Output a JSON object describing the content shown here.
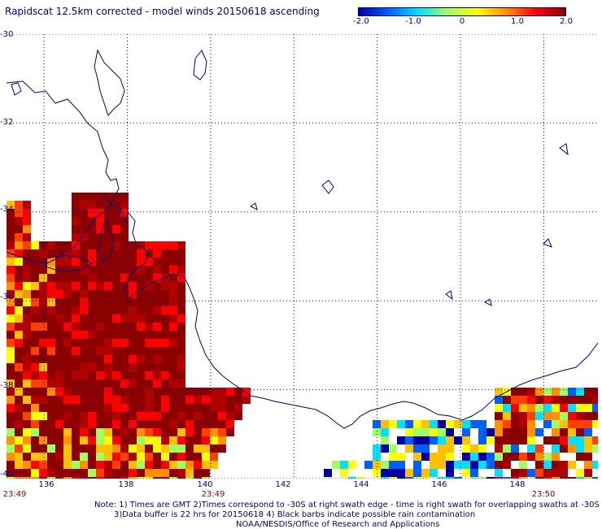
{
  "title": "Rapidscat 12.5km corrected - model winds 20150618 ascending",
  "colorbar": {
    "labels": [
      "-2.0",
      "-1.0",
      "0",
      "1.0",
      "2.0"
    ],
    "label_values": [
      -2.0,
      -1.0,
      0,
      1.0,
      2.0
    ],
    "colors": [
      "#0000a0",
      "#0060ff",
      "#00e0ff",
      "#a0ff60",
      "#ffff00",
      "#ff9000",
      "#ff0000",
      "#8b0000"
    ]
  },
  "axes": {
    "lat_labels": [
      "-30",
      "-32",
      "-34",
      "-36",
      "-38",
      "-40"
    ],
    "lat_values": [
      -30,
      -32,
      -34,
      -36,
      -38,
      -40
    ],
    "lon_labels": [
      "136",
      "138",
      "140",
      "142",
      "144",
      "146",
      "148"
    ],
    "lon_values": [
      136,
      138,
      140,
      142,
      144,
      146,
      148
    ],
    "lat_range": [
      -40,
      -30
    ],
    "lon_range": [
      135.1,
      149.3
    ],
    "grid": "dotted"
  },
  "swath_times": [
    {
      "label": "23:49",
      "lon": 135.3
    },
    {
      "label": "23:49",
      "lon": 140.2
    },
    {
      "label": "23:50",
      "lon": 148.8
    }
  ],
  "notes": [
    "Note: 1) Times are GMT 2)Times correspond to -30S at right swath edge - time is right swath for overlapping swaths at -30S",
    "3)Data buffer is 22 hrs for 20150618 4) Black barbs indicate possible rain contamination",
    "NOAA/NESDIS/Office of Research and Applications"
  ],
  "colors": {
    "coast": "#000080",
    "text": "#000080",
    "time": "#8b0000"
  }
}
